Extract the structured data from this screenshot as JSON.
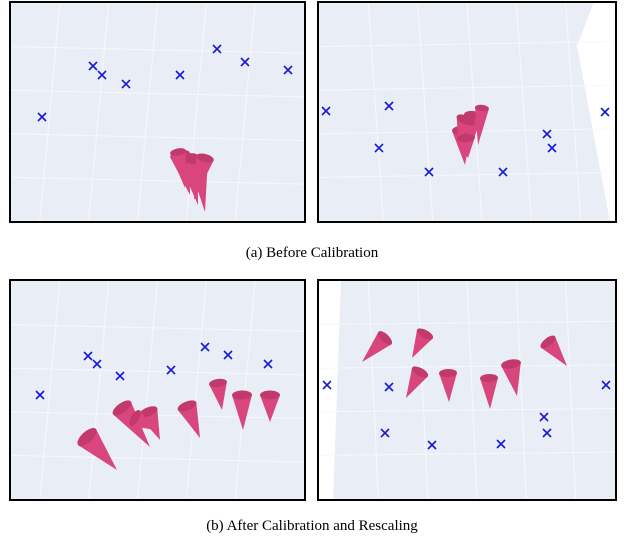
{
  "figure": {
    "subfigures": [
      {
        "caption": "(a) Before Calibration"
      },
      {
        "caption": "(b) After Calibration and Rescaling"
      }
    ]
  }
}
